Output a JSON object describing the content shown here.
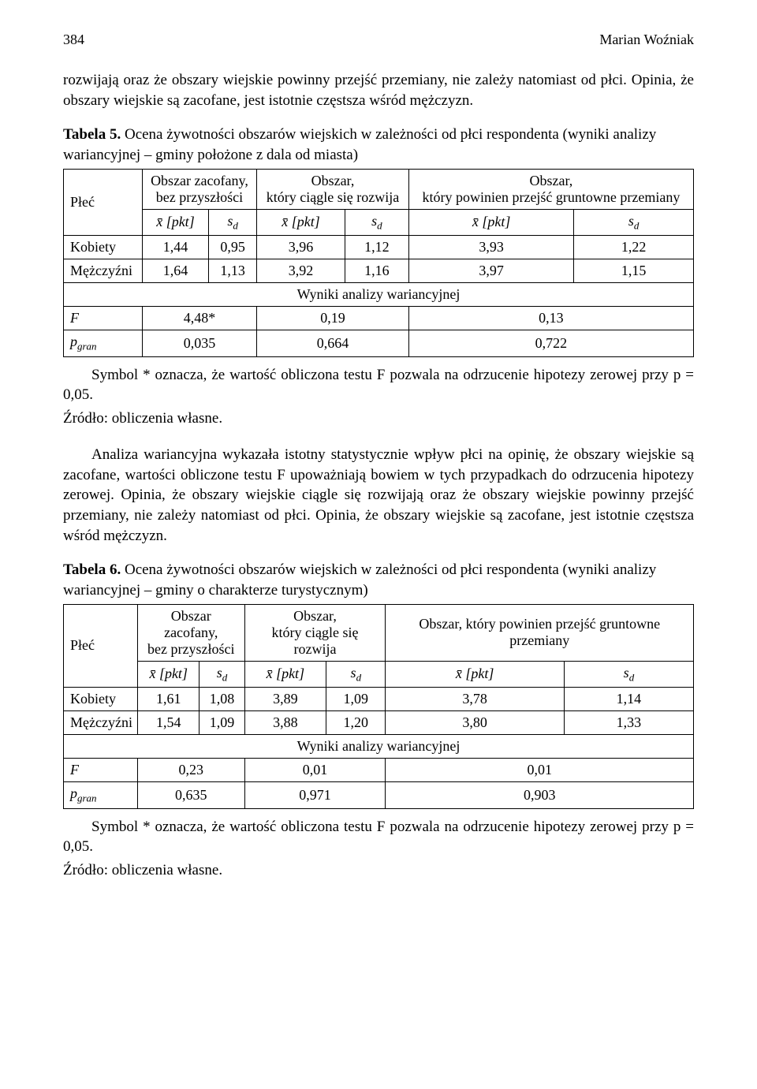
{
  "header": {
    "page_no": "384",
    "author": "Marian Woźniak"
  },
  "intro_para": "rozwijają oraz że obszary wiejskie powinny przejść przemiany, nie zależy natomiast od płci. Opinia, że obszary wiejskie są zacofane, jest istotnie częstsza wśród mężczyzn.",
  "t5": {
    "caption_label": "Tabela 5.",
    "caption_text": " Ocena żywotności obszarów wiejskich w zależności od płci respondenta (wyniki analizy wariancyjnej – gminy położone z dala od miasta)",
    "col0": "Płeć",
    "group_headers": [
      "Obszar zacofany,\nbez przyszłości",
      "Obszar,\nktóry ciągle się rozwija",
      "Obszar,\nktóry powinien przejść gruntowne przemiany"
    ],
    "sub_x": "x̄ [pkt]",
    "sub_s": "s",
    "sub_s_d": "d",
    "rows": [
      {
        "label": "Kobiety",
        "v": [
          "1,44",
          "0,95",
          "3,96",
          "1,12",
          "3,93",
          "1,22"
        ]
      },
      {
        "label": "Mężczyźni",
        "v": [
          "1,64",
          "1,13",
          "3,92",
          "1,16",
          "3,97",
          "1,15"
        ]
      }
    ],
    "anova_header": "Wyniki analizy wariancyjnej",
    "F_label": "F",
    "F_vals": [
      "4,48*",
      "0,19",
      "0,13"
    ],
    "p_label": "p",
    "p_sub": "gran",
    "p_vals": [
      "0,035",
      "0,664",
      "0,722"
    ]
  },
  "t5_footnote": "Symbol * oznacza, że wartość obliczona testu F pozwala na odrzucenie hipotezy zerowej przy p = 0,05.",
  "source_line": "Źródło: obliczenia własne.",
  "mid_para": "Analiza wariancyjna wykazała istotny statystycznie wpływ płci na opinię, że obszary wiejskie są zacofane, wartości obliczone testu F upoważniają bowiem w tych przypadkach do odrzucenia hipotezy zerowej. Opinia, że obszary wiejskie ciągle się rozwijają oraz że obszary wiejskie powinny przejść przemiany, nie zależy natomiast od płci. Opinia, że obszary wiejskie są zacofane, jest istotnie częstsza wśród mężczyzn.",
  "t6": {
    "caption_label": "Tabela 6.",
    "caption_text": " Ocena żywotności obszarów wiejskich w zależności od płci respondenta (wyniki analizy wariancyjnej – gminy o charakterze turystycznym)",
    "col0": "Płeć",
    "group_headers": [
      "Obszar zacofany,\nbez przyszłości",
      "Obszar,\nktóry ciągle się rozwija",
      "Obszar, który powinien przejść gruntowne przemiany"
    ],
    "rows": [
      {
        "label": "Kobiety",
        "v": [
          "1,61",
          "1,08",
          "3,89",
          "1,09",
          "3,78",
          "1,14"
        ]
      },
      {
        "label": "Mężczyźni",
        "v": [
          "1,54",
          "1,09",
          "3,88",
          "1,20",
          "3,80",
          "1,33"
        ]
      }
    ],
    "anova_header": "Wyniki analizy wariancyjnej",
    "F_vals": [
      "0,23",
      "0,01",
      "0,01"
    ],
    "p_vals": [
      "0,635",
      "0,971",
      "0,903"
    ]
  },
  "t6_footnote": "Symbol * oznacza, że wartość obliczona testu F pozwala na odrzucenie hipotezy zerowej przy p = 0,05."
}
